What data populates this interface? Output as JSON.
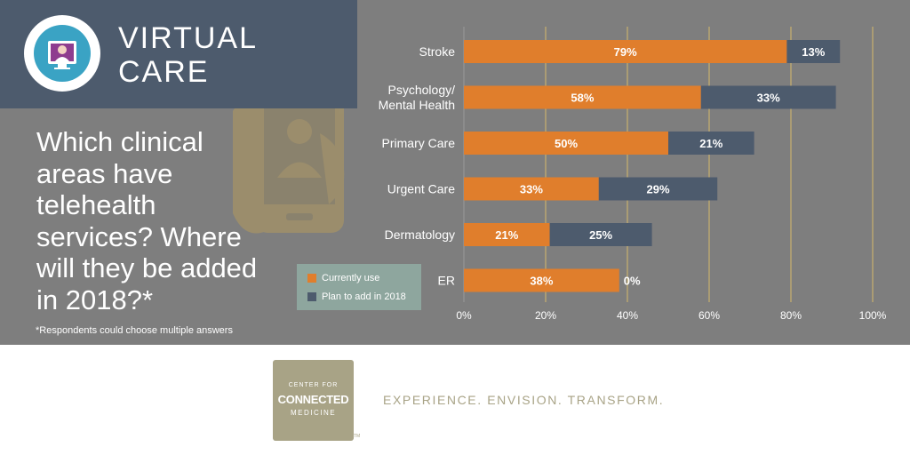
{
  "header": {
    "title_line_1": "VIRTUAL",
    "title_line_2": "CARE"
  },
  "question": "Which clinical areas have telehealth services? Where will they be added in 2018?*",
  "footnote": "*Respondents could choose multiple answers",
  "colors": {
    "currently_use": "#e07e2c",
    "plan_to_add": "#4d5b6d",
    "panel_background": "#7e7e7e",
    "header_background": "#4d5b6d",
    "legend_background": "#8ea69e",
    "brand_tan": "#a8a386",
    "gridline": "#c9b06e"
  },
  "chart_data": {
    "type": "bar",
    "orientation": "horizontal",
    "stacked": true,
    "categories": [
      [
        "Stroke"
      ],
      [
        "Psychology/",
        "Mental Health"
      ],
      [
        "Primary Care"
      ],
      [
        "Urgent Care"
      ],
      [
        "Dermatology"
      ],
      [
        "ER"
      ]
    ],
    "series": [
      {
        "name": "Currently use",
        "values": [
          79,
          58,
          50,
          33,
          21,
          38
        ],
        "labels": [
          "79%",
          "58%",
          "50%",
          "33%",
          "21%",
          "38%"
        ]
      },
      {
        "name": "Plan to add in 2018",
        "values": [
          13,
          33,
          21,
          29,
          25,
          0
        ],
        "labels": [
          "13%",
          "33%",
          "21%",
          "29%",
          "25%",
          "0%"
        ]
      }
    ],
    "xlim": [
      0,
      100
    ],
    "xticks": [
      0,
      20,
      40,
      60,
      80,
      100
    ],
    "xtick_labels": [
      "0%",
      "20%",
      "40%",
      "60%",
      "80%",
      "100%"
    ],
    "grid": true,
    "legend_position": "bottom-left"
  },
  "legend": {
    "items": [
      {
        "label": "Currently use"
      },
      {
        "label": "Plan to add in 2018"
      }
    ]
  },
  "footer": {
    "logo_line_1": "CENTER FOR",
    "logo_line_2": "CONNECTED",
    "logo_line_3": "MEDICINE",
    "trademark": "TM",
    "tagline": "EXPERIENCE. ENVISION. TRANSFORM."
  }
}
